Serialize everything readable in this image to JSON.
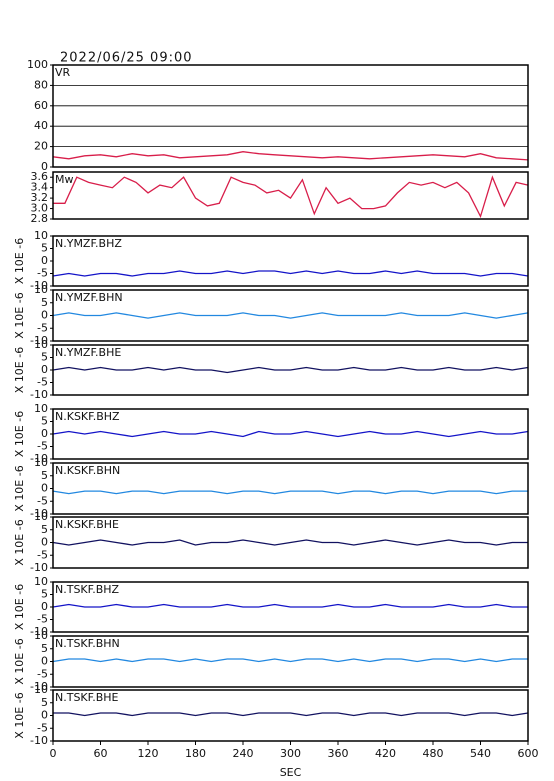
{
  "chart_data": [
    {
      "type": "line",
      "title": "2022/06/25 09:00",
      "label": "VR",
      "color": "#d81e4a",
      "grid": true,
      "x": [
        0,
        20,
        40,
        60,
        80,
        100,
        120,
        140,
        160,
        180,
        200,
        220,
        240,
        260,
        280,
        300,
        320,
        340,
        360,
        380,
        400,
        420,
        440,
        460,
        480,
        500,
        520,
        540,
        560,
        580,
        600
      ],
      "values": [
        10,
        8,
        11,
        12,
        10,
        13,
        11,
        12,
        9,
        10,
        11,
        12,
        15,
        13,
        12,
        11,
        10,
        9,
        10,
        9,
        8,
        9,
        10,
        11,
        12,
        11,
        10,
        13,
        9,
        8,
        7
      ],
      "xlim": [
        0,
        600
      ],
      "ylim": [
        0,
        100
      ],
      "yticks": [
        0,
        20,
        40,
        60,
        80,
        100
      ]
    },
    {
      "type": "line",
      "label": "Mw",
      "color": "#d81e4a",
      "x": [
        0,
        15,
        30,
        45,
        60,
        75,
        90,
        105,
        120,
        135,
        150,
        165,
        180,
        195,
        210,
        225,
        240,
        255,
        270,
        285,
        300,
        315,
        330,
        345,
        360,
        375,
        390,
        405,
        420,
        435,
        450,
        465,
        480,
        495,
        510,
        525,
        540,
        555,
        570,
        585,
        600
      ],
      "values": [
        3.1,
        3.1,
        3.6,
        3.5,
        3.45,
        3.4,
        3.6,
        3.5,
        3.3,
        3.45,
        3.4,
        3.6,
        3.2,
        3.05,
        3.1,
        3.6,
        3.5,
        3.45,
        3.3,
        3.35,
        3.2,
        3.55,
        2.9,
        3.4,
        3.1,
        3.2,
        3.0,
        3.0,
        3.05,
        3.3,
        3.5,
        3.45,
        3.5,
        3.4,
        3.5,
        3.3,
        2.85,
        3.6,
        3.05,
        3.5,
        3.45
      ],
      "xlim": [
        0,
        600
      ],
      "ylim": [
        2.8,
        3.7
      ],
      "yticks": [
        2.8,
        {
          "value": 3,
          "label": "3.0"
        },
        3.2,
        3.4,
        3.6
      ]
    },
    {
      "type": "line",
      "label": "N.YMZF.BHZ",
      "ylabel": "X 10E -6",
      "color": "#1414c8",
      "x": [
        0,
        20,
        40,
        60,
        80,
        100,
        120,
        140,
        160,
        180,
        200,
        220,
        240,
        260,
        280,
        300,
        320,
        340,
        360,
        380,
        400,
        420,
        440,
        460,
        480,
        500,
        520,
        540,
        560,
        580,
        600
      ],
      "values": [
        -6,
        -5,
        -6,
        -5,
        -5,
        -6,
        -5,
        -5,
        -4,
        -5,
        -5,
        -4,
        -5,
        -4,
        -4,
        -5,
        -4,
        -5,
        -4,
        -5,
        -5,
        -4,
        -5,
        -4,
        -5,
        -5,
        -5,
        -6,
        -5,
        -5,
        -6
      ],
      "xlim": [
        0,
        600
      ],
      "ylim": [
        -10,
        10
      ],
      "yticks": [
        -10,
        -5,
        0,
        5,
        10
      ]
    },
    {
      "type": "line",
      "label": "N.YMZF.BHN",
      "ylabel": "X 10E -6",
      "color": "#2288e0",
      "x": [
        0,
        20,
        40,
        60,
        80,
        100,
        120,
        140,
        160,
        180,
        200,
        220,
        240,
        260,
        280,
        300,
        320,
        340,
        360,
        380,
        400,
        420,
        440,
        460,
        480,
        500,
        520,
        540,
        560,
        580,
        600
      ],
      "values": [
        0,
        1,
        0,
        0,
        1,
        0,
        -1,
        0,
        1,
        0,
        0,
        0,
        1,
        0,
        0,
        -1,
        0,
        1,
        0,
        0,
        0,
        0,
        1,
        0,
        0,
        0,
        1,
        0,
        -1,
        0,
        1
      ],
      "xlim": [
        0,
        600
      ],
      "ylim": [
        -10,
        10
      ],
      "yticks": [
        -10,
        -5,
        0,
        5,
        10
      ]
    },
    {
      "type": "line",
      "label": "N.YMZF.BHE",
      "ylabel": "X 10E -6",
      "color": "#121260",
      "x": [
        0,
        20,
        40,
        60,
        80,
        100,
        120,
        140,
        160,
        180,
        200,
        220,
        240,
        260,
        280,
        300,
        320,
        340,
        360,
        380,
        400,
        420,
        440,
        460,
        480,
        500,
        520,
        540,
        560,
        580,
        600
      ],
      "values": [
        0,
        1,
        0,
        1,
        0,
        0,
        1,
        0,
        1,
        0,
        0,
        -1,
        0,
        1,
        0,
        0,
        1,
        0,
        0,
        1,
        0,
        0,
        1,
        0,
        0,
        1,
        0,
        0,
        1,
        0,
        1
      ],
      "xlim": [
        0,
        600
      ],
      "ylim": [
        -10,
        10
      ],
      "yticks": [
        -10,
        -5,
        0,
        5,
        10
      ]
    },
    {
      "type": "line",
      "label": "N.KSKF.BHZ",
      "ylabel": "X 10E -6",
      "color": "#1414c8",
      "x": [
        0,
        20,
        40,
        60,
        80,
        100,
        120,
        140,
        160,
        180,
        200,
        220,
        240,
        260,
        280,
        300,
        320,
        340,
        360,
        380,
        400,
        420,
        440,
        460,
        480,
        500,
        520,
        540,
        560,
        580,
        600
      ],
      "values": [
        0,
        1,
        0,
        1,
        0,
        -1,
        0,
        1,
        0,
        0,
        1,
        0,
        -1,
        1,
        0,
        0,
        1,
        0,
        -1,
        0,
        1,
        0,
        0,
        1,
        0,
        -1,
        0,
        1,
        0,
        0,
        1
      ],
      "xlim": [
        0,
        600
      ],
      "ylim": [
        -10,
        10
      ],
      "yticks": [
        -10,
        -5,
        0,
        5,
        10
      ]
    },
    {
      "type": "line",
      "label": "N.KSKF.BHN",
      "ylabel": "X 10E -6",
      "color": "#2288e0",
      "x": [
        0,
        20,
        40,
        60,
        80,
        100,
        120,
        140,
        160,
        180,
        200,
        220,
        240,
        260,
        280,
        300,
        320,
        340,
        360,
        380,
        400,
        420,
        440,
        460,
        480,
        500,
        520,
        540,
        560,
        580,
        600
      ],
      "values": [
        -1,
        -2,
        -1,
        -1,
        -2,
        -1,
        -1,
        -2,
        -1,
        -1,
        -1,
        -2,
        -1,
        -1,
        -2,
        -1,
        -1,
        -1,
        -2,
        -1,
        -1,
        -2,
        -1,
        -1,
        -2,
        -1,
        -1,
        -1,
        -2,
        -1,
        -1
      ],
      "xlim": [
        0,
        600
      ],
      "ylim": [
        -10,
        10
      ],
      "yticks": [
        -10,
        -5,
        0,
        5,
        10
      ]
    },
    {
      "type": "line",
      "label": "N.KSKF.BHE",
      "ylabel": "X 10E -6",
      "color": "#121260",
      "x": [
        0,
        20,
        40,
        60,
        80,
        100,
        120,
        140,
        160,
        180,
        200,
        220,
        240,
        260,
        280,
        300,
        320,
        340,
        360,
        380,
        400,
        420,
        440,
        460,
        480,
        500,
        520,
        540,
        560,
        580,
        600
      ],
      "values": [
        0,
        -1,
        0,
        1,
        0,
        -1,
        0,
        0,
        1,
        -1,
        0,
        0,
        1,
        0,
        -1,
        0,
        1,
        0,
        0,
        -1,
        0,
        1,
        0,
        -1,
        0,
        1,
        0,
        0,
        -1,
        0,
        0
      ],
      "xlim": [
        0,
        600
      ],
      "ylim": [
        -10,
        10
      ],
      "yticks": [
        -10,
        -5,
        0,
        5,
        10
      ]
    },
    {
      "type": "line",
      "label": "N.TSKF.BHZ",
      "ylabel": "X 10E -6",
      "color": "#1414c8",
      "x": [
        0,
        20,
        40,
        60,
        80,
        100,
        120,
        140,
        160,
        180,
        200,
        220,
        240,
        260,
        280,
        300,
        320,
        340,
        360,
        380,
        400,
        420,
        440,
        460,
        480,
        500,
        520,
        540,
        560,
        580,
        600
      ],
      "values": [
        0,
        1,
        0,
        0,
        1,
        0,
        0,
        1,
        0,
        0,
        0,
        1,
        0,
        0,
        1,
        0,
        0,
        0,
        1,
        0,
        0,
        1,
        0,
        0,
        0,
        1,
        0,
        0,
        1,
        0,
        0
      ],
      "xlim": [
        0,
        600
      ],
      "ylim": [
        -10,
        10
      ],
      "yticks": [
        -10,
        -5,
        0,
        5,
        10
      ]
    },
    {
      "type": "line",
      "label": "N.TSKF.BHN",
      "ylabel": "X 10E -6",
      "color": "#2288e0",
      "x": [
        0,
        20,
        40,
        60,
        80,
        100,
        120,
        140,
        160,
        180,
        200,
        220,
        240,
        260,
        280,
        300,
        320,
        340,
        360,
        380,
        400,
        420,
        440,
        460,
        480,
        500,
        520,
        540,
        560,
        580,
        600
      ],
      "values": [
        0,
        1,
        1,
        0,
        1,
        0,
        1,
        1,
        0,
        1,
        0,
        1,
        1,
        0,
        1,
        0,
        1,
        1,
        0,
        1,
        0,
        1,
        1,
        0,
        1,
        1,
        0,
        1,
        0,
        1,
        1
      ],
      "xlim": [
        0,
        600
      ],
      "ylim": [
        -10,
        10
      ],
      "yticks": [
        -10,
        -5,
        0,
        5,
        10
      ]
    },
    {
      "type": "line",
      "label": "N.TSKF.BHE",
      "ylabel": "X 10E -6",
      "color": "#121260",
      "x": [
        0,
        20,
        40,
        60,
        80,
        100,
        120,
        140,
        160,
        180,
        200,
        220,
        240,
        260,
        280,
        300,
        320,
        340,
        360,
        380,
        400,
        420,
        440,
        460,
        480,
        500,
        520,
        540,
        560,
        580,
        600
      ],
      "values": [
        1,
        1,
        0,
        1,
        1,
        0,
        1,
        1,
        1,
        0,
        1,
        1,
        0,
        1,
        1,
        1,
        0,
        1,
        1,
        0,
        1,
        1,
        0,
        1,
        1,
        1,
        0,
        1,
        1,
        0,
        1
      ],
      "xlim": [
        0,
        600
      ],
      "ylim": [
        -10,
        10
      ],
      "yticks": [
        -10,
        -5,
        0,
        5,
        10
      ],
      "xticks": [
        0,
        60,
        120,
        180,
        240,
        300,
        360,
        420,
        480,
        540,
        600
      ],
      "xlabel": "SEC"
    }
  ]
}
